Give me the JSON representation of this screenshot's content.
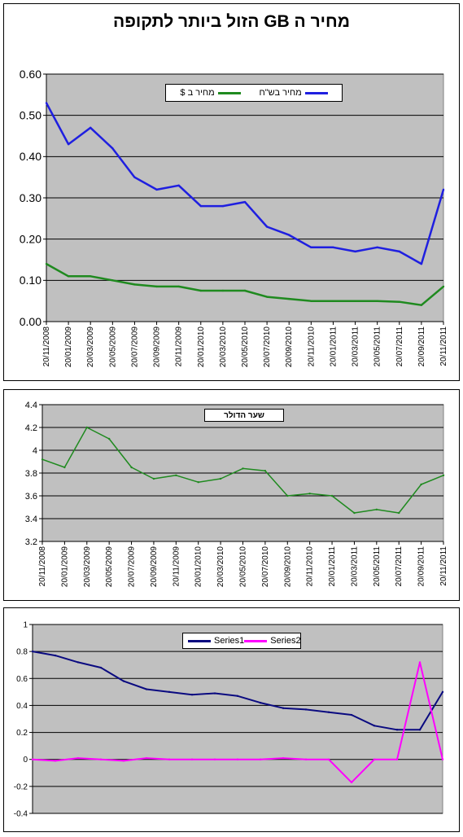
{
  "chart_data": [
    {
      "type": "line",
      "title": "מחיר ה GB הזול ביותר לתקופה",
      "xlabel": "",
      "ylabel": "",
      "ylim": [
        0,
        0.6
      ],
      "yticks": [
        "0.00",
        "0.10",
        "0.20",
        "0.30",
        "0.40",
        "0.50",
        "0.60"
      ],
      "grid": true,
      "legend_position": "top-center",
      "x": [
        "20/11/2008",
        "20/01/2009",
        "20/03/2009",
        "20/05/2009",
        "20/07/2009",
        "20/09/2009",
        "20/11/2009",
        "20/01/2010",
        "20/03/2010",
        "20/05/2010",
        "20/07/2010",
        "20/09/2010",
        "20/11/2010",
        "20/01/2011",
        "20/03/2011",
        "20/05/2011",
        "20/07/2011",
        "20/09/2011",
        "20/11/2011"
      ],
      "series": [
        {
          "name": "מחיר בש\"ח",
          "color": "#1f1fe0",
          "values": [
            0.53,
            0.43,
            0.47,
            0.42,
            0.35,
            0.32,
            0.33,
            0.28,
            0.28,
            0.29,
            0.23,
            0.21,
            0.18,
            0.18,
            0.17,
            0.18,
            0.17,
            0.14,
            0.32
          ]
        },
        {
          "name": "מחיר ב $",
          "color": "#1f8a1f",
          "values": [
            0.14,
            0.11,
            0.11,
            0.1,
            0.09,
            0.085,
            0.085,
            0.075,
            0.075,
            0.075,
            0.06,
            0.055,
            0.05,
            0.05,
            0.05,
            0.05,
            0.048,
            0.04,
            0.085
          ]
        }
      ]
    },
    {
      "type": "line",
      "title": "",
      "xlabel": "",
      "ylabel": "",
      "ylim": [
        3.2,
        4.4
      ],
      "yticks": [
        "3.2",
        "3.4",
        "3.6",
        "3.8",
        "4",
        "4.2",
        "4.4"
      ],
      "grid": true,
      "legend_position": "top-center",
      "x": [
        "20/11/2008",
        "20/01/2009",
        "20/03/2009",
        "20/05/2009",
        "20/07/2009",
        "20/09/2009",
        "20/11/2009",
        "20/01/2010",
        "20/03/2010",
        "20/05/2010",
        "20/07/2010",
        "20/09/2010",
        "20/11/2010",
        "20/01/2011",
        "20/03/2011",
        "20/05/2011",
        "20/07/2011",
        "20/09/2011",
        "20/11/2011"
      ],
      "series": [
        {
          "name": "שער הדולר",
          "color": "#1f8a1f",
          "values": [
            3.92,
            3.85,
            4.2,
            4.1,
            3.85,
            3.75,
            3.78,
            3.72,
            3.75,
            3.84,
            3.82,
            3.6,
            3.62,
            3.6,
            3.45,
            3.48,
            3.45,
            3.7,
            3.78
          ]
        }
      ]
    },
    {
      "type": "line",
      "title": "",
      "xlabel": "",
      "ylabel": "",
      "ylim": [
        -0.4,
        1
      ],
      "yticks": [
        "-0.4",
        "-0.2",
        "0",
        "0.2",
        "0.4",
        "0.6",
        "0.8",
        "1"
      ],
      "grid": true,
      "legend_position": "top-center",
      "x": [
        "20/11/2008",
        "20/01/2009",
        "20/03/2009",
        "20/05/2009",
        "20/07/2009",
        "20/09/2009",
        "20/11/2009",
        "20/01/2010",
        "20/03/2010",
        "20/05/2010",
        "20/07/2010",
        "20/09/2010",
        "20/11/2010",
        "20/01/2011",
        "20/03/2011",
        "20/05/2011",
        "20/07/2011",
        "20/09/2011",
        "20/11/2011"
      ],
      "series": [
        {
          "name": "Series1",
          "color": "#0a0a80",
          "values": [
            0.8,
            0.77,
            0.72,
            0.68,
            0.58,
            0.52,
            0.5,
            0.48,
            0.49,
            0.47,
            0.42,
            0.38,
            0.37,
            0.35,
            0.33,
            0.25,
            0.22,
            0.22,
            0.5
          ]
        },
        {
          "name": "Series2",
          "color": "#ff00ff",
          "values": [
            0,
            -0.01,
            0.01,
            0,
            -0.01,
            0.01,
            0,
            0,
            0,
            0,
            0,
            0.01,
            0,
            0,
            -0.17,
            0,
            0,
            0.72,
            0
          ]
        }
      ]
    }
  ]
}
